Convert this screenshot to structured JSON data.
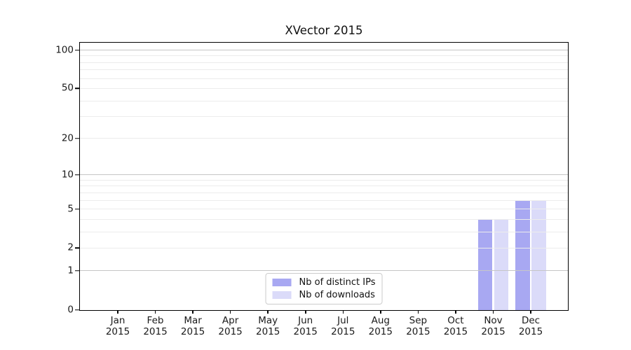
{
  "chart_data": {
    "type": "bar",
    "title": "XVector 2015",
    "categories": [
      {
        "month": "Jan",
        "year": "2015"
      },
      {
        "month": "Feb",
        "year": "2015"
      },
      {
        "month": "Mar",
        "year": "2015"
      },
      {
        "month": "Apr",
        "year": "2015"
      },
      {
        "month": "May",
        "year": "2015"
      },
      {
        "month": "Jun",
        "year": "2015"
      },
      {
        "month": "Jul",
        "year": "2015"
      },
      {
        "month": "Aug",
        "year": "2015"
      },
      {
        "month": "Sep",
        "year": "2015"
      },
      {
        "month": "Oct",
        "year": "2015"
      },
      {
        "month": "Nov",
        "year": "2015"
      },
      {
        "month": "Dec",
        "year": "2015"
      }
    ],
    "series": [
      {
        "name": "Nb of distinct IPs",
        "color": "#a8a8f2",
        "values": [
          0,
          0,
          0,
          0,
          0,
          0,
          0,
          0,
          0,
          0,
          4,
          6
        ]
      },
      {
        "name": "Nb of downloads",
        "color": "#dbdbf9",
        "values": [
          0,
          0,
          0,
          0,
          0,
          0,
          0,
          0,
          0,
          0,
          4,
          6
        ]
      }
    ],
    "y_axis": {
      "scale": "symlog",
      "range": [
        0,
        100
      ],
      "tick_values": [
        0,
        1,
        2,
        5,
        10,
        20,
        50,
        100
      ],
      "tick_labels": [
        "0",
        "1",
        "2",
        "5",
        "10",
        "20",
        "50",
        "100"
      ],
      "major_gridlines": [
        1,
        10,
        100
      ],
      "minor_gridlines": [
        2,
        3,
        4,
        5,
        6,
        7,
        8,
        9,
        20,
        30,
        40,
        50,
        60,
        70,
        80,
        90
      ]
    },
    "legend": {
      "position": "lower center"
    },
    "grid": true
  },
  "colors": {
    "background": "#ffffff",
    "spine": "#000000",
    "major_grid": "#c6c6c6",
    "minor_grid": "#ececec",
    "tick_text": "#1a1a1a",
    "legend_border": "#cccccc",
    "bar_distinct_ips": "#a8a8f2",
    "bar_downloads": "#dbdbf9"
  }
}
